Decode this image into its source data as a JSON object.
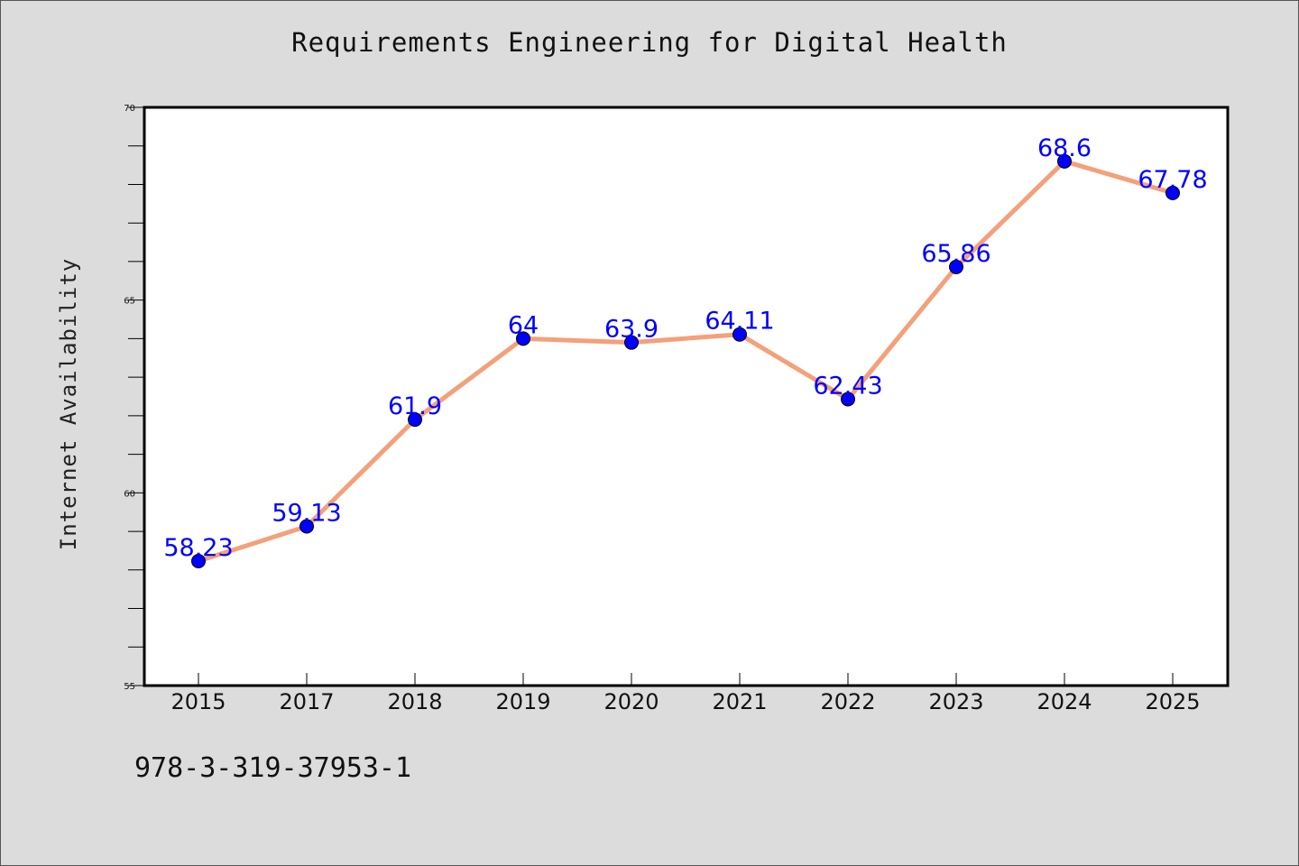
{
  "chart_data": {
    "type": "line",
    "title": "Requirements Engineering for Digital Health",
    "xlabel": "",
    "ylabel": "Internet Availability",
    "categories": [
      "2015",
      "2017",
      "2018",
      "2019",
      "2020",
      "2021",
      "2022",
      "2023",
      "2024",
      "2025"
    ],
    "series": [
      {
        "values": [
          58.23,
          59.13,
          61.9,
          64,
          63.9,
          64.11,
          62.43,
          65.86,
          68.6,
          67.78
        ],
        "data_labels": [
          "58.23",
          "59.13",
          "61.9",
          "64",
          "63.9",
          "64.11",
          "62.43",
          "65.86",
          "68.6",
          "67.78"
        ]
      }
    ],
    "ylim": [
      55,
      70
    ],
    "yticks": [
      "55",
      "60",
      "65",
      "70"
    ],
    "grid": false,
    "legend": "none",
    "colors": {
      "line": "#f4a07a",
      "marker": "#0000ff",
      "data_label": "#0000ff",
      "background": "#dcdcdc",
      "plot_area": "#ffffff"
    }
  },
  "footer": {
    "isbn": "978-3-319-37953-1"
  }
}
